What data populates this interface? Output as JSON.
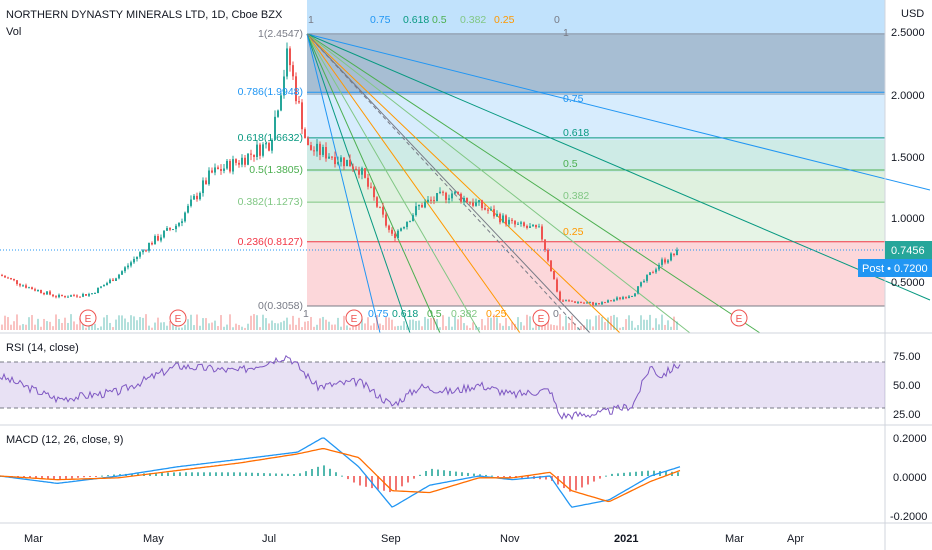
{
  "header": {
    "symbol_title": "NORTHERN DYNASTY MINERALS LTD, 1D, Cboe BZX",
    "vol_label": "Vol",
    "currency": "USD"
  },
  "price_axis": {
    "ticks": [
      "2.5000",
      "2.0000",
      "1.5000",
      "1.0000",
      "0.5000"
    ],
    "last_price_badge": "0.7456",
    "post_badge": "Post • 0.7200"
  },
  "rsi_panel": {
    "title": "RSI (14, close)",
    "ticks": [
      "75.00",
      "50.00",
      "25.00"
    ]
  },
  "macd_panel": {
    "title": "MACD (12, 26, close, 9)",
    "ticks": [
      "0.2000",
      "0.0000",
      "-0.2000"
    ]
  },
  "time_axis": {
    "labels": [
      "Mar",
      "May",
      "Jul",
      "Sep",
      "Nov",
      "2021",
      "Mar",
      "Apr"
    ]
  },
  "fib_retracement": {
    "levels": [
      {
        "level": "1",
        "label": "1(2.4547)",
        "color": "#787b86"
      },
      {
        "level": "0.786",
        "label": "0.786(1.9948)",
        "color": "#2196f3"
      },
      {
        "level": "0.618",
        "label": "0.618(1.6632)",
        "color": "#089981"
      },
      {
        "level": "0.5",
        "label": "0.5(1.3805)",
        "color": "#4caf50"
      },
      {
        "level": "0.382",
        "label": "0.382(1.1273)",
        "color": "#81c784"
      },
      {
        "level": "0.236",
        "label": "0.236(0.8127)",
        "color": "#f23645"
      },
      {
        "level": "0",
        "label": "0(0.3058)",
        "color": "#787b86"
      }
    ]
  },
  "fan_labels": {
    "top": [
      "1",
      "0.75",
      "0.618",
      "0.5",
      "0.382",
      "0.25",
      "0"
    ],
    "bottom": [
      "1",
      "0.75",
      "0.618",
      "0.5",
      "0.382",
      "0.25",
      "0"
    ],
    "right": [
      "1",
      "0.75",
      "0.618",
      "0.5",
      "0.382",
      "0.25"
    ]
  },
  "earnings_markers": [
    "E",
    "E",
    "E",
    "E",
    "E"
  ],
  "colors": {
    "up": "#26a69a",
    "down": "#ef5350",
    "rsi_line": "#7e57c2",
    "macd_line": "#2196f3",
    "signal_line": "#ff6d00",
    "last_price": "#26a69a",
    "post_price": "#2196f3"
  },
  "chart_data": [
    {
      "type": "candlestick",
      "title": "NORTHERN DYNASTY MINERALS LTD, 1D, Cboe BZX",
      "ylabel": "USD",
      "ylim": [
        0.1,
        2.6
      ],
      "x": [
        "2020-02-15",
        "2020-03-01",
        "2020-03-15",
        "2020-04-01",
        "2020-04-15",
        "2020-05-01",
        "2020-05-15",
        "2020-06-01",
        "2020-06-15",
        "2020-07-01",
        "2020-07-10",
        "2020-07-20",
        "2020-08-01",
        "2020-08-15",
        "2020-09-01",
        "2020-09-15",
        "2020-10-01",
        "2020-10-15",
        "2020-11-01",
        "2020-11-15",
        "2020-11-25",
        "2020-12-15",
        "2021-01-01",
        "2021-01-15",
        "2021-01-25"
      ],
      "close": [
        0.55,
        0.45,
        0.38,
        0.4,
        0.55,
        0.8,
        0.95,
        1.35,
        1.45,
        1.6,
        2.3,
        1.55,
        1.5,
        1.4,
        0.85,
        1.1,
        1.2,
        1.1,
        0.95,
        0.9,
        0.35,
        0.32,
        0.4,
        0.65,
        0.74
      ],
      "last_price": 0.7456,
      "post_price": 0.72
    },
    {
      "type": "line",
      "title": "RSI (14, close)",
      "ylim": [
        15,
        90
      ],
      "band": [
        30,
        70
      ],
      "x": [
        "2020-02-15",
        "2020-03-15",
        "2020-04-15",
        "2020-05-15",
        "2020-06-15",
        "2020-07-10",
        "2020-07-25",
        "2020-08-15",
        "2020-09-01",
        "2020-09-15",
        "2020-10-01",
        "2020-10-15",
        "2020-11-01",
        "2020-11-20",
        "2020-11-25",
        "2020-12-15",
        "2021-01-01",
        "2021-01-10",
        "2021-01-15",
        "2021-01-25"
      ],
      "values": [
        60,
        38,
        45,
        70,
        65,
        80,
        50,
        55,
        32,
        50,
        45,
        52,
        42,
        47,
        22,
        24,
        32,
        70,
        60,
        72
      ]
    },
    {
      "type": "line",
      "title": "MACD (12, 26, close, 9)",
      "ylim": [
        -0.25,
        0.25
      ],
      "x": [
        "2020-02-15",
        "2020-03-15",
        "2020-04-15",
        "2020-05-15",
        "2020-06-15",
        "2020-07-15",
        "2020-07-28",
        "2020-08-15",
        "2020-09-01",
        "2020-09-20",
        "2020-10-15",
        "2020-11-01",
        "2020-11-20",
        "2020-12-01",
        "2020-12-20",
        "2021-01-10",
        "2021-01-25"
      ],
      "series": [
        {
          "values": [
            0.0,
            -0.04,
            0.0,
            0.05,
            0.09,
            0.13,
            0.21,
            0.05,
            -0.17,
            -0.05,
            0.0,
            -0.02,
            0.0,
            -0.17,
            -0.13,
            0.0,
            0.05
          ]
        },
        {
          "values": [
            0.0,
            -0.02,
            -0.01,
            0.03,
            0.07,
            0.12,
            0.15,
            0.1,
            -0.08,
            -0.09,
            -0.01,
            -0.01,
            0.02,
            -0.08,
            -0.14,
            -0.03,
            0.03
          ]
        }
      ]
    }
  ]
}
